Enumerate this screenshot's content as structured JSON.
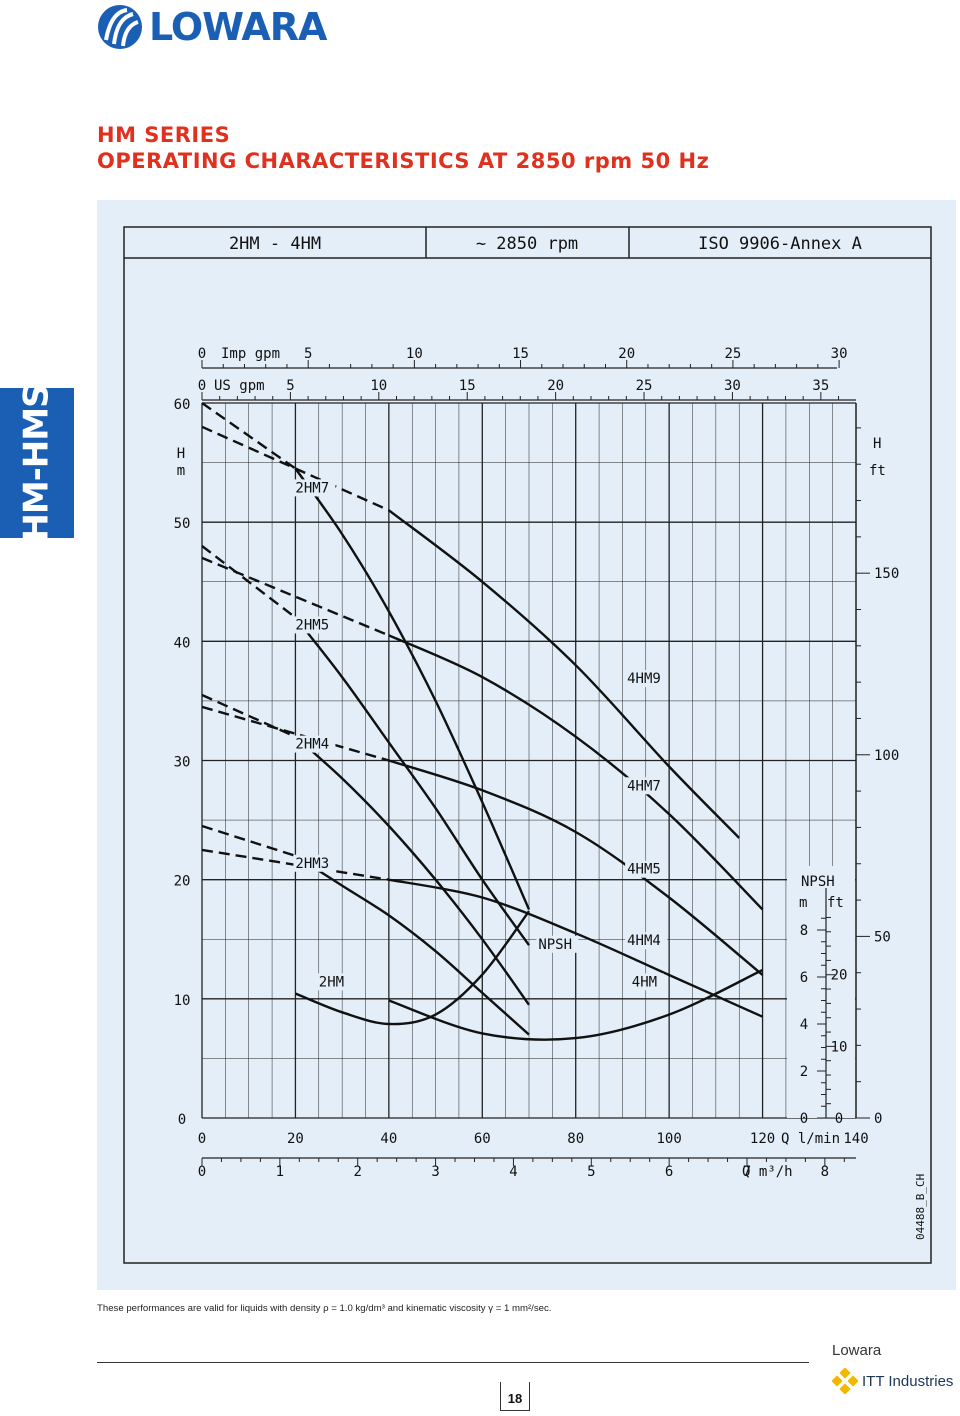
{
  "brand": {
    "logo_text": "LOWARA",
    "colors": {
      "logo_blue": "#1a5fb4",
      "title_red": "#e0301e",
      "panel_bg": "#e3eef8"
    }
  },
  "side_tab": {
    "label": "HM-HMS"
  },
  "title": {
    "line1": "HM SERIES",
    "line2": "OPERATING CHARACTERISTICS AT 2850 rpm 50 Hz"
  },
  "chart_header": {
    "models": "2HM - 4HM",
    "speed": "~ 2850 rpm",
    "standard": "ISO 9906-Annex A"
  },
  "chart_data": {
    "type": "line",
    "x_axis_top_imp": {
      "unit_label": "Imp gpm",
      "ticks": [
        "0",
        "5",
        "10",
        "15",
        "20",
        "25",
        "30"
      ]
    },
    "x_axis_top_us": {
      "unit_label": "US gpm",
      "ticks": [
        "0",
        "5",
        "10",
        "15",
        "20",
        "25",
        "30",
        "35"
      ]
    },
    "x_axis_lpm": {
      "unit_label": "Q l/min",
      "ticks": [
        "0",
        "20",
        "40",
        "60",
        "80",
        "100",
        "120",
        "140"
      ],
      "xlim": [
        0,
        140
      ]
    },
    "x_axis_m3h": {
      "unit_label": "Q m³/h",
      "ticks": [
        "0",
        "1",
        "2",
        "3",
        "4",
        "5",
        "6",
        "7",
        "8"
      ]
    },
    "y_axis_m": {
      "label_top": "H",
      "label_bottom": "m",
      "ticks": [
        "0",
        "10",
        "20",
        "30",
        "40",
        "50",
        "60"
      ],
      "ylim": [
        0,
        60
      ]
    },
    "y_axis_ft": {
      "label_top": "H",
      "label_bottom": "ft",
      "ticks": [
        "0",
        "50",
        "100",
        "150"
      ]
    },
    "npsh_axis": {
      "title": "NPSH",
      "unit_m": "m",
      "unit_ft": "ft",
      "ticks_m": [
        "0",
        "2",
        "4",
        "6",
        "8"
      ],
      "ticks_ft": [
        "0",
        "10",
        "20"
      ]
    },
    "series": [
      {
        "name": "2HM7",
        "label_at": [
          20,
          52.5
        ],
        "dashed": [
          [
            0,
            60
          ],
          [
            20,
            54.5
          ]
        ],
        "solid": [
          [
            20,
            54.5
          ],
          [
            30,
            49
          ],
          [
            40,
            42.5
          ],
          [
            50,
            35
          ],
          [
            60,
            26.5
          ],
          [
            70,
            17.5
          ]
        ]
      },
      {
        "name": "2HM5",
        "label_at": [
          20,
          41
        ],
        "dashed": [
          [
            0,
            48
          ],
          [
            20,
            42
          ]
        ],
        "solid": [
          [
            20,
            42
          ],
          [
            30,
            37
          ],
          [
            40,
            31.5
          ],
          [
            50,
            26
          ],
          [
            60,
            20
          ],
          [
            70,
            14.5
          ]
        ]
      },
      {
        "name": "2HM4",
        "label_at": [
          20,
          31
        ],
        "dashed": [
          [
            0,
            35.5
          ],
          [
            20,
            32
          ]
        ],
        "solid": [
          [
            20,
            32
          ],
          [
            30,
            28.5
          ],
          [
            40,
            24.5
          ],
          [
            50,
            20
          ],
          [
            60,
            15
          ],
          [
            70,
            9.5
          ]
        ]
      },
      {
        "name": "2HM3",
        "label_at": [
          20,
          21
        ],
        "dashed": [
          [
            0,
            24.5
          ],
          [
            20,
            22
          ]
        ],
        "solid": [
          [
            20,
            22
          ],
          [
            30,
            19.5
          ],
          [
            40,
            17
          ],
          [
            50,
            14
          ],
          [
            60,
            10.5
          ],
          [
            70,
            7
          ]
        ]
      },
      {
        "name": "4HM9",
        "label_at": [
          91,
          36.5
        ],
        "dashed": [
          [
            0,
            58
          ],
          [
            40,
            51
          ]
        ],
        "solid": [
          [
            40,
            51
          ],
          [
            60,
            45
          ],
          [
            80,
            38
          ],
          [
            100,
            29.5
          ],
          [
            115,
            23.5
          ]
        ]
      },
      {
        "name": "4HM7",
        "label_at": [
          91,
          27.5
        ],
        "dashed": [
          [
            0,
            47
          ],
          [
            40,
            40.5
          ]
        ],
        "solid": [
          [
            40,
            40.5
          ],
          [
            60,
            37
          ],
          [
            80,
            32
          ],
          [
            100,
            25.5
          ],
          [
            120,
            17.5
          ]
        ]
      },
      {
        "name": "4HM5",
        "label_at": [
          91,
          20.5
        ],
        "dashed": [
          [
            0,
            34.5
          ],
          [
            40,
            30
          ]
        ],
        "solid": [
          [
            40,
            30
          ],
          [
            60,
            27.5
          ],
          [
            80,
            24
          ],
          [
            100,
            18.5
          ],
          [
            120,
            12
          ]
        ]
      },
      {
        "name": "4HM4",
        "label_at": [
          91,
          14.5
        ],
        "dashed": [
          [
            0,
            22.5
          ],
          [
            40,
            20
          ]
        ],
        "solid": [
          [
            40,
            20
          ],
          [
            60,
            18.5
          ],
          [
            80,
            15.5
          ],
          [
            100,
            12
          ],
          [
            120,
            8.5
          ]
        ]
      }
    ],
    "npsh_curves": [
      {
        "name": "2HM",
        "label_at": [
          25,
          5.6
        ],
        "points": [
          [
            20,
            5.3
          ],
          [
            30,
            4.5
          ],
          [
            40,
            4.0
          ],
          [
            50,
            4.4
          ],
          [
            60,
            6.1
          ],
          [
            70,
            8.8
          ]
        ]
      },
      {
        "name": "4HM",
        "label_at": [
          92,
          5.6
        ],
        "points": [
          [
            40,
            5.0
          ],
          [
            60,
            3.6
          ],
          [
            80,
            3.4
          ],
          [
            100,
            4.4
          ],
          [
            120,
            6.3
          ]
        ]
      }
    ],
    "npsh_label": {
      "text": "NPSH",
      "label_at": [
        72,
        7.2
      ]
    },
    "drawing_code": "04488_B_CH"
  },
  "footnote": "These performances are valid for liquids with density ρ = 1.0 kg/dm³ and kinematic viscosity γ = 1 mm²/sec.",
  "page_number": "18",
  "footer_brand": "Lowara",
  "footer_company": "ITT Industries"
}
